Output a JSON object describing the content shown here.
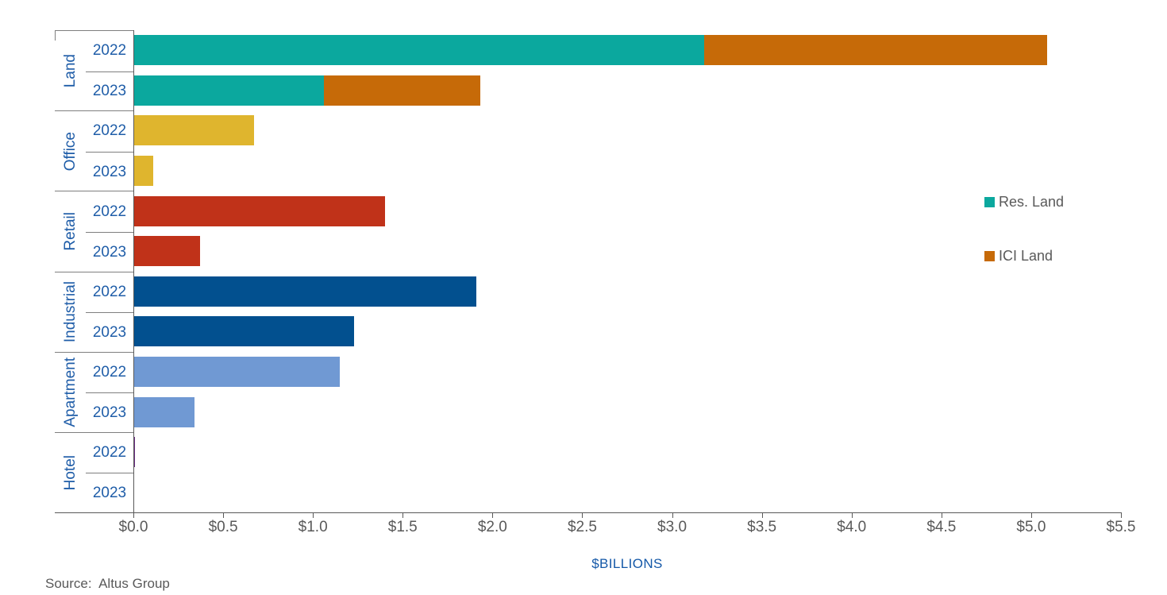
{
  "chart_data": {
    "type": "bar",
    "orientation": "horizontal",
    "stacked": true,
    "title": "",
    "xlabel": "$BILLIONS",
    "ylabel": "",
    "xlim": [
      0,
      5.5
    ],
    "tick_step": 0.5,
    "x_ticks": [
      "$0.0",
      "$0.5",
      "$1.0",
      "$1.5",
      "$2.0",
      "$2.5",
      "$3.0",
      "$3.5",
      "$4.0",
      "$4.5",
      "$5.0",
      "$5.5"
    ],
    "grid": false,
    "legend_position": "right",
    "legend": [
      {
        "label": "Res. Land",
        "color": "#0ba89e"
      },
      {
        "label": "ICI Land",
        "color": "#c66a08"
      }
    ],
    "groups": [
      "Land",
      "Office",
      "Retail",
      "Industrial",
      "Apartment",
      "Hotel"
    ],
    "years": [
      "2022",
      "2023"
    ],
    "rows": [
      {
        "group": "Land",
        "year": "2022",
        "segments": [
          {
            "name": "Res. Land",
            "value": 3.18,
            "color": "#0ba89e"
          },
          {
            "name": "ICI Land",
            "value": 1.91,
            "color": "#c66a08"
          }
        ]
      },
      {
        "group": "Land",
        "year": "2023",
        "segments": [
          {
            "name": "Res. Land",
            "value": 1.06,
            "color": "#0ba89e"
          },
          {
            "name": "ICI Land",
            "value": 0.87,
            "color": "#c66a08"
          }
        ]
      },
      {
        "group": "Office",
        "year": "2022",
        "segments": [
          {
            "name": "Office",
            "value": 0.67,
            "color": "#dfb52e"
          }
        ]
      },
      {
        "group": "Office",
        "year": "2023",
        "segments": [
          {
            "name": "Office",
            "value": 0.11,
            "color": "#dfb52e"
          }
        ]
      },
      {
        "group": "Retail",
        "year": "2022",
        "segments": [
          {
            "name": "Retail",
            "value": 1.4,
            "color": "#c03219"
          }
        ]
      },
      {
        "group": "Retail",
        "year": "2023",
        "segments": [
          {
            "name": "Retail",
            "value": 0.37,
            "color": "#c03219"
          }
        ]
      },
      {
        "group": "Industrial",
        "year": "2022",
        "segments": [
          {
            "name": "Industrial",
            "value": 1.91,
            "color": "#02508f"
          }
        ]
      },
      {
        "group": "Industrial",
        "year": "2023",
        "segments": [
          {
            "name": "Industrial",
            "value": 1.23,
            "color": "#02508f"
          }
        ]
      },
      {
        "group": "Apartment",
        "year": "2022",
        "segments": [
          {
            "name": "Apartment",
            "value": 1.15,
            "color": "#7099d3"
          }
        ]
      },
      {
        "group": "Apartment",
        "year": "2023",
        "segments": [
          {
            "name": "Apartment",
            "value": 0.34,
            "color": "#7099d3"
          }
        ]
      },
      {
        "group": "Hotel",
        "year": "2022",
        "segments": [
          {
            "name": "Hotel",
            "value": 0.01,
            "color": "#6a2c82"
          }
        ]
      },
      {
        "group": "Hotel",
        "year": "2023",
        "segments": []
      }
    ]
  },
  "source": "Source:  Altus Group",
  "style_colors": {
    "axis_line": "#595959",
    "separator_line": "#7f7f7f",
    "category_text": "#1f5da8",
    "tick_text": "#595959",
    "legend_text": "#595959",
    "xlabel_text": "#1458a8"
  }
}
